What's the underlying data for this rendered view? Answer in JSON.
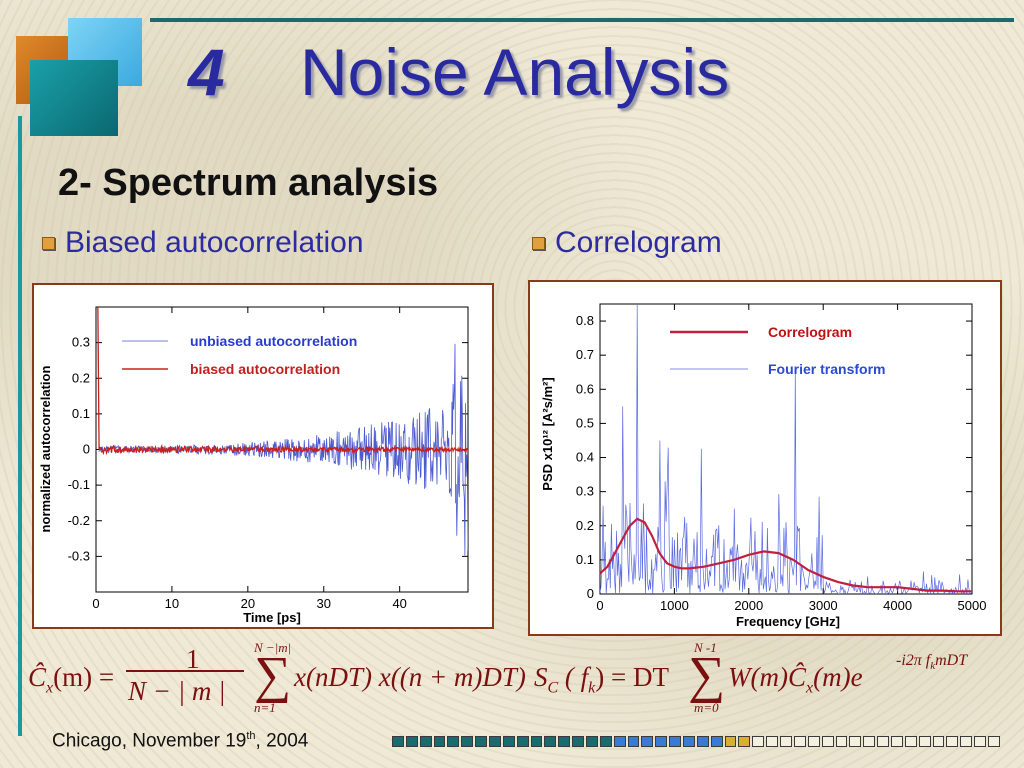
{
  "slide": {
    "number": "4",
    "title": "Noise Analysis",
    "subtitle": "2- Spectrum analysis",
    "bullets": [
      "Biased autocorrelation",
      "Correlogram"
    ],
    "footer_text": "Chicago, November 19",
    "footer_sup": "th",
    "footer_year": ", 2004",
    "progress": {
      "total": 44,
      "filled": 26,
      "colors": {
        "dark": "#1a6a6e",
        "blue": "#3a7ad0",
        "gold": "#d8b030",
        "empty": "#f4f0e0"
      }
    }
  },
  "chart_data": [
    {
      "type": "line",
      "xlabel": "Time    [ps]",
      "ylabel": "normalized autocorrelation",
      "xlim": [
        0,
        49
      ],
      "ylim": [
        -0.4,
        0.4
      ],
      "xticks": [
        0,
        10,
        20,
        30,
        40
      ],
      "yticks": [
        0.3,
        0.2,
        0.1,
        0,
        -0.1,
        -0.2,
        -0.3
      ],
      "grid": false,
      "legend_position": "top-left",
      "series": [
        {
          "name": "unbiased autocorrelation",
          "color": "#4a5ad0",
          "style": "noisy-growing",
          "x_range": [
            0,
            49
          ],
          "noise_amplitude_start": 0.01,
          "noise_amplitude_end": 0.15,
          "initial_peak": 1.0
        },
        {
          "name": "biased autocorrelation",
          "color": "#c82020",
          "style": "noisy-damped",
          "x_range": [
            0,
            49
          ],
          "noise_amplitude_start": 0.01,
          "noise_amplitude_end": 0.004,
          "initial_peak": 1.0
        }
      ]
    },
    {
      "type": "line",
      "xlabel": "Frequency [GHz]",
      "ylabel": "PSD     x10¹²   [A²s/m²]",
      "xlim": [
        0,
        5000
      ],
      "ylim": [
        0,
        0.85
      ],
      "xticks": [
        0,
        1000,
        2000,
        3000,
        4000,
        5000
      ],
      "yticks": [
        0,
        0.1,
        0.2,
        0.3,
        0.4,
        0.5,
        0.6,
        0.7,
        0.8
      ],
      "grid": false,
      "legend_position": "top-right",
      "series": [
        {
          "name": "Correlogram",
          "color": "#c02040",
          "x": [
            0,
            100,
            200,
            300,
            400,
            500,
            600,
            700,
            800,
            900,
            1000,
            1100,
            1200,
            1400,
            1600,
            1800,
            2000,
            2200,
            2400,
            2600,
            2800,
            3000,
            3200,
            3400,
            3600,
            3800,
            4000,
            4200,
            4400,
            4600,
            4800,
            5000
          ],
          "y": [
            0.06,
            0.08,
            0.12,
            0.16,
            0.2,
            0.22,
            0.21,
            0.17,
            0.12,
            0.09,
            0.08,
            0.075,
            0.075,
            0.08,
            0.09,
            0.1,
            0.115,
            0.125,
            0.12,
            0.1,
            0.07,
            0.05,
            0.035,
            0.025,
            0.02,
            0.02,
            0.02,
            0.015,
            0.01,
            0.01,
            0.008,
            0.008
          ]
        },
        {
          "name": "Fourier transform",
          "color": "#5a6ae0",
          "style": "noisy-spectrum",
          "peaks": [
            {
              "x": 500,
              "y": 0.85
            },
            {
              "x": 2620,
              "y": 0.66
            },
            {
              "x": 300,
              "y": 0.55
            },
            {
              "x": 800,
              "y": 0.45
            }
          ]
        }
      ]
    }
  ],
  "formula_left": {
    "lhs": "Ĉ",
    "lhs_sub": "x",
    "lhs_arg": "(m) =",
    "num": "1",
    "den": "N − | m |",
    "sum_top": "N −|m|",
    "sum_bot": "n=1",
    "body": "x(nDT) x((n + m)DT)"
  },
  "formula_right": {
    "lhs": "S",
    "lhs_sub": "C",
    "lhs_arg": "( f",
    "lhs_arg_sub": "k",
    "lhs_arg_end": ") = DT",
    "sum_top": "N -1",
    "sum_bot": "m=0",
    "body": "W(m)Ĉ",
    "body_sub": "x",
    "body_end": "(m)e",
    "exp": "-i2π f",
    "exp_sub": "k",
    "exp_end": "mDT"
  }
}
